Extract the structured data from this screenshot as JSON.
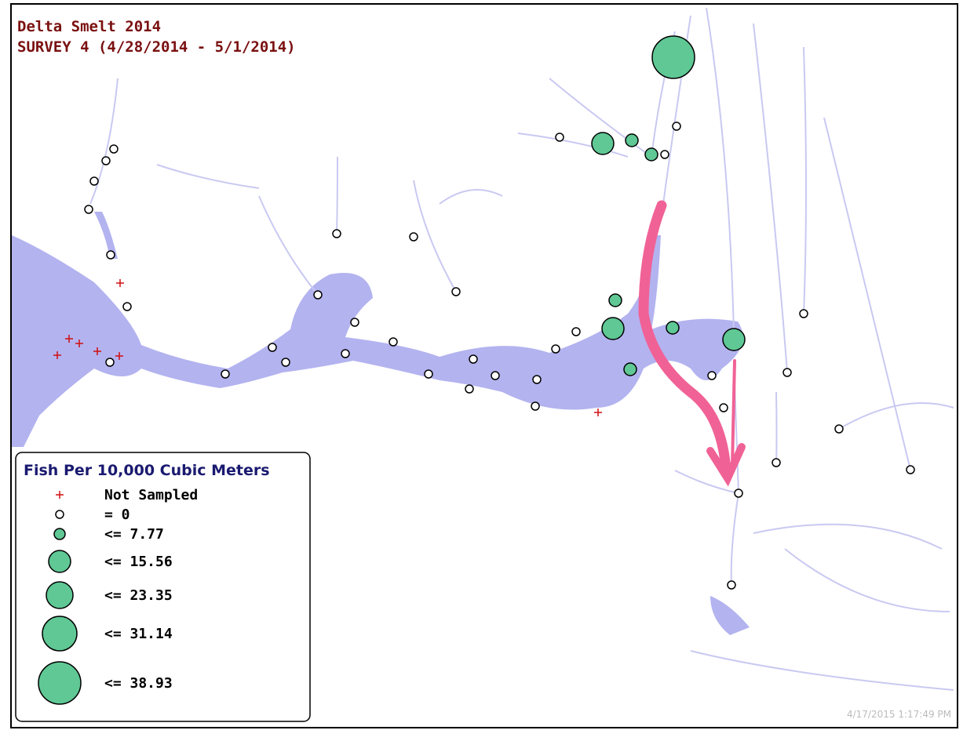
{
  "header": {
    "title": "Delta Smelt  2014",
    "subtitle": "SURVEY 4  (4/28/2014  -  5/1/2014)"
  },
  "legend": {
    "title": "Fish Per 10,000 Cubic Meters",
    "entries": [
      "Not Sampled",
      "= 0",
      "<= 7.77",
      "<= 15.56",
      "<= 23.35",
      "<= 31.14",
      "<= 38.93"
    ]
  },
  "timestamp": "4/17/2015 1:17:49 PM"
}
